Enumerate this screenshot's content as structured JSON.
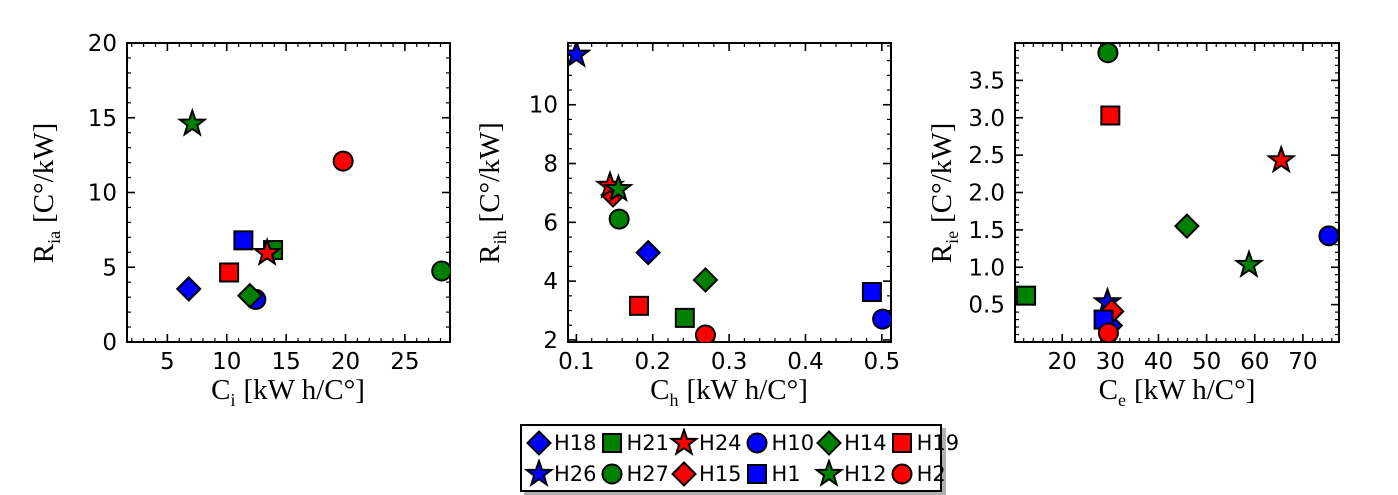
{
  "colors": {
    "blue": "#0000ff",
    "green": "#008000",
    "red": "#ff0000",
    "marker_edge": "#000000",
    "axis": "#000000",
    "background": "#ffffff",
    "legend_shadow": "#b0b0b0"
  },
  "houses": {
    "H18": {
      "marker": "diamond",
      "color": "blue"
    },
    "H21": {
      "marker": "square",
      "color": "green"
    },
    "H24": {
      "marker": "star",
      "color": "red"
    },
    "H10": {
      "marker": "circle",
      "color": "blue"
    },
    "H14": {
      "marker": "diamond",
      "color": "green"
    },
    "H19": {
      "marker": "square",
      "color": "red"
    },
    "H26": {
      "marker": "star",
      "color": "blue"
    },
    "H27": {
      "marker": "circle",
      "color": "green"
    },
    "H15": {
      "marker": "diamond",
      "color": "red"
    },
    "H1": {
      "marker": "square",
      "color": "blue"
    },
    "H12": {
      "marker": "star",
      "color": "green"
    },
    "H2": {
      "marker": "circle",
      "color": "red"
    }
  },
  "legend": {
    "entries": [
      "H18",
      "H21",
      "H24",
      "H10",
      "H14",
      "H19",
      "H26",
      "H27",
      "H15",
      "H1",
      "H12",
      "H2"
    ]
  },
  "chart_data": [
    {
      "type": "scatter",
      "title": "",
      "ylabel": {
        "base": "R",
        "sub": "ia",
        "unit": "[C°/kW]"
      },
      "xlabel": {
        "base": "C",
        "sub": "i",
        "unit": "[kW h/C°]"
      },
      "xlim": [
        1.6,
        28.8
      ],
      "ylim": [
        0,
        20
      ],
      "xticks": [
        5,
        10,
        15,
        20,
        25
      ],
      "xtick_labels": [
        "5",
        "10",
        "15",
        "20",
        "25"
      ],
      "yticks": [
        0,
        5,
        10,
        15,
        20
      ],
      "ytick_labels": [
        "0",
        "5",
        "10",
        "15",
        "20"
      ],
      "x_minor_step": 1,
      "y_minor_step": 1,
      "points": [
        {
          "id": "H1",
          "x": 11.4,
          "y": 6.8
        },
        {
          "id": "H19",
          "x": 10.2,
          "y": 4.65
        },
        {
          "id": "H21",
          "x": 13.9,
          "y": 6.15
        },
        {
          "id": "H24",
          "x": 13.4,
          "y": 5.95
        },
        {
          "id": "H10",
          "x": 12.45,
          "y": 2.85
        },
        {
          "id": "H14",
          "x": 11.95,
          "y": 3.1
        },
        {
          "id": "H18",
          "x": 6.8,
          "y": 3.55
        },
        {
          "id": "H12",
          "x": 7.1,
          "y": 14.6
        },
        {
          "id": "H2",
          "x": 19.8,
          "y": 12.1
        },
        {
          "id": "H27",
          "x": 28.1,
          "y": 4.75
        }
      ]
    },
    {
      "type": "scatter",
      "title": "",
      "ylabel": {
        "base": "R",
        "sub": "ih",
        "unit": "[C°/kW]"
      },
      "xlabel": {
        "base": "C",
        "sub": "h",
        "unit": "[kW h/C°]"
      },
      "xlim": [
        0.089,
        0.512
      ],
      "ylim": [
        1.93,
        12.1
      ],
      "xticks": [
        0.1,
        0.2,
        0.3,
        0.4,
        0.5
      ],
      "xtick_labels": [
        "0.1",
        "0.2",
        "0.3",
        "0.4",
        "0.5"
      ],
      "yticks": [
        2,
        4,
        6,
        8,
        10
      ],
      "ytick_labels": [
        "2",
        "4",
        "6",
        "8",
        "10"
      ],
      "x_minor_step": 0.02,
      "y_minor_step": 0.5,
      "points": [
        {
          "id": "H15",
          "x": 0.148,
          "y": 6.93
        },
        {
          "id": "H24",
          "x": 0.144,
          "y": 7.24
        },
        {
          "id": "H12",
          "x": 0.155,
          "y": 7.13
        },
        {
          "id": "H27",
          "x": 0.156,
          "y": 6.11
        },
        {
          "id": "H18",
          "x": 0.194,
          "y": 4.97
        },
        {
          "id": "H19",
          "x": 0.182,
          "y": 3.16
        },
        {
          "id": "H21",
          "x": 0.242,
          "y": 2.75
        },
        {
          "id": "H14",
          "x": 0.269,
          "y": 4.04
        },
        {
          "id": "H2",
          "x": 0.269,
          "y": 2.17
        },
        {
          "id": "H1",
          "x": 0.487,
          "y": 3.63
        },
        {
          "id": "H10",
          "x": 0.501,
          "y": 2.71
        },
        {
          "id": "H26",
          "x": 0.1,
          "y": 11.7
        }
      ]
    },
    {
      "type": "scatter",
      "title": "",
      "ylabel": {
        "base": "R",
        "sub": "ie",
        "unit": "[C°/kW]"
      },
      "xlabel": {
        "base": "C",
        "sub": "e",
        "unit": "[kW h/C°]"
      },
      "xlim": [
        10.2,
        77.5
      ],
      "ylim": [
        0,
        4
      ],
      "xticks": [
        20,
        30,
        40,
        50,
        60,
        70
      ],
      "xtick_labels": [
        "20",
        "30",
        "40",
        "50",
        "60",
        "70"
      ],
      "yticks": [
        0.5,
        1.0,
        1.5,
        2.0,
        2.5,
        3.0,
        3.5
      ],
      "ytick_labels": [
        "0.5",
        "1.0",
        "1.5",
        "2.0",
        "2.5",
        "3.0",
        "3.5"
      ],
      "x_minor_step": 2,
      "y_minor_step": 0.1,
      "points": [
        {
          "id": "H18",
          "x": 30.0,
          "y": 0.22
        },
        {
          "id": "H26",
          "x": 29.4,
          "y": 0.53
        },
        {
          "id": "H15",
          "x": 30.3,
          "y": 0.41
        },
        {
          "id": "H1",
          "x": 28.6,
          "y": 0.3
        },
        {
          "id": "H2",
          "x": 29.6,
          "y": 0.12
        },
        {
          "id": "H21",
          "x": 12.5,
          "y": 0.62
        },
        {
          "id": "H12",
          "x": 58.8,
          "y": 1.03
        },
        {
          "id": "H14",
          "x": 45.9,
          "y": 1.55
        },
        {
          "id": "H10",
          "x": 75.4,
          "y": 1.42
        },
        {
          "id": "H24",
          "x": 65.5,
          "y": 2.43
        },
        {
          "id": "H19",
          "x": 30.0,
          "y": 3.03
        },
        {
          "id": "H27",
          "x": 29.5,
          "y": 3.87
        }
      ]
    }
  ]
}
